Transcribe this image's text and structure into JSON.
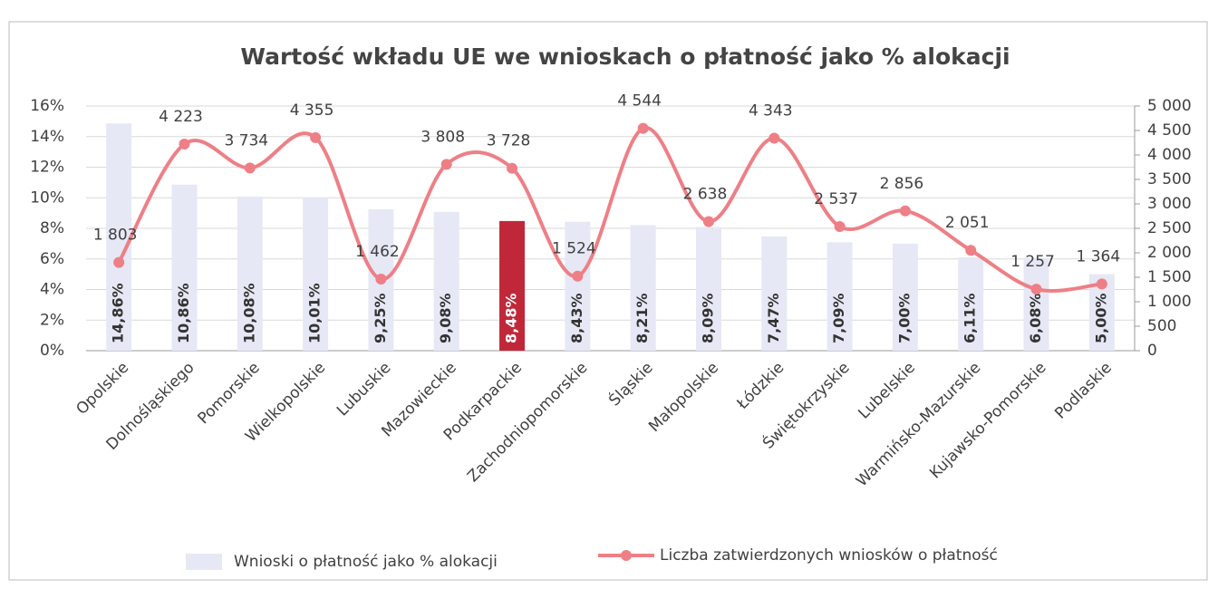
{
  "chart_data": {
    "type": "bar",
    "title": "Wartość wkładu UE we wnioskach o płatność jako % alokacji",
    "categories": [
      "Opolskie",
      "Dolnośląskiego",
      "Pomorskie",
      "Wielkopolskie",
      "Lubuskie",
      "Mazowieckie",
      "Podkarpackie",
      "Zachodniopomorskie",
      "Śląskie",
      "Małopolskie",
      "Łódzkie",
      "Świętokrzyskie",
      "Lubelskie",
      "Warmińsko-Mazurskie",
      "Kujawsko-Pomorskie",
      "Podlaskie"
    ],
    "series": [
      {
        "name": "Wnioski o płatność jako % alokacji",
        "type": "bar",
        "color": "#e6e8f5",
        "colors": [
          "#e6e8f5",
          "#e6e8f5",
          "#e6e8f5",
          "#e6e8f5",
          "#e6e8f5",
          "#e6e8f5",
          "#c0283a",
          "#e6e8f5",
          "#e6e8f5",
          "#e6e8f5",
          "#e6e8f5",
          "#e6e8f5",
          "#e6e8f5",
          "#e6e8f5",
          "#e6e8f5",
          "#e6e8f5"
        ],
        "values": [
          14.86,
          10.86,
          10.08,
          10.01,
          9.25,
          9.08,
          8.48,
          8.43,
          8.21,
          8.09,
          7.47,
          7.09,
          7.0,
          6.11,
          6.08,
          5.0
        ],
        "value_labels": [
          "14,86%",
          "10,86%",
          "10,08%",
          "10,01%",
          "9,25%",
          "9,08%",
          "8,48%",
          "8,43%",
          "8,21%",
          "8,09%",
          "7,47%",
          "7,09%",
          "7,00%",
          "6,11%",
          "6,08%",
          "5,00%"
        ]
      },
      {
        "name": "Liczba zatwierdzonych wniosków o płatność",
        "type": "line",
        "axis": "y2",
        "color": "#ee7f86",
        "values": [
          1803,
          4223,
          3734,
          4355,
          1462,
          3808,
          3728,
          1524,
          4544,
          2638,
          4343,
          2537,
          2856,
          2051,
          1257,
          1364
        ],
        "value_labels": [
          "1 803",
          "4 223",
          "3 734",
          "4 355",
          "1 462",
          "3 808",
          "3 728",
          "1 524",
          "4 544",
          "2 638",
          "4 343",
          "2 537",
          "2 856",
          "2 051",
          "1 257",
          "1 364"
        ]
      }
    ],
    "ylim": [
      0,
      16
    ],
    "yticks": [
      {
        "value": 0,
        "label": "0%"
      },
      {
        "value": 2,
        "label": "2%"
      },
      {
        "value": 4,
        "label": "4%"
      },
      {
        "value": 6,
        "label": "6%"
      },
      {
        "value": 8,
        "label": "8%"
      },
      {
        "value": 10,
        "label": "10%"
      },
      {
        "value": 12,
        "label": "12%"
      },
      {
        "value": 14,
        "label": "14%"
      },
      {
        "value": 16,
        "label": "16%"
      }
    ],
    "y2lim": [
      0,
      5000
    ],
    "y2ticks": [
      0,
      500,
      {
        "value": 1000,
        "label": "1 000"
      },
      {
        "value": 1500,
        "label": "1 500"
      },
      {
        "value": 2000,
        "label": "2 000"
      },
      {
        "value": 2500,
        "label": "2 500"
      },
      {
        "value": 3000,
        "label": "3 000"
      },
      {
        "value": 3500,
        "label": "3 500"
      },
      {
        "value": 4000,
        "label": "4 000"
      },
      {
        "value": 4500,
        "label": "4 500"
      },
      {
        "value": 5000,
        "label": "5 000"
      }
    ],
    "grid": true
  }
}
